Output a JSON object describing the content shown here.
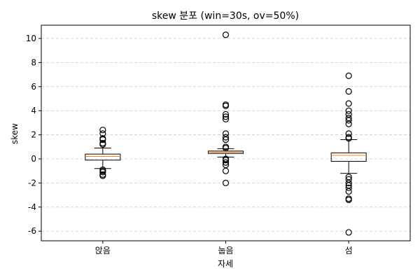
{
  "chart_data": {
    "type": "box",
    "title": "skew 분포 (win=30s, ov=50%)",
    "xlabel": "자세",
    "ylabel": "skew",
    "categories": [
      "앉음",
      "눕음",
      "섬"
    ],
    "ylim": [
      -6.8,
      11.1
    ],
    "yticks": [
      -6,
      -4,
      -2,
      0,
      2,
      4,
      6,
      8,
      10
    ],
    "grid": "y-dashed",
    "boxes": [
      {
        "category": "앉음",
        "q1": -0.1,
        "median": 0.2,
        "q3": 0.4,
        "whisker_low": -0.8,
        "whisker_high": 0.9,
        "outliers": [
          1.2,
          1.3,
          1.6,
          1.7,
          2.1,
          2.4,
          -0.9,
          -1.0,
          -1.1,
          -1.3,
          -1.4
        ]
      },
      {
        "category": "눕음",
        "q1": 0.45,
        "median": 0.55,
        "q3": 0.65,
        "whisker_low": 0.15,
        "whisker_high": 0.85,
        "outliers": [
          10.3,
          4.5,
          4.4,
          3.7,
          3.5,
          3.3,
          2.1,
          1.8,
          1.6,
          1.0,
          0.9,
          0.0,
          -0.1,
          -0.3,
          -0.5,
          -1.0,
          -2.0
        ]
      },
      {
        "category": "섬",
        "q1": -0.2,
        "median": 0.3,
        "q3": 0.5,
        "whisker_low": -1.2,
        "whisker_high": 1.6,
        "outliers": [
          6.9,
          5.6,
          4.6,
          4.0,
          3.7,
          3.4,
          3.2,
          2.9,
          2.1,
          1.8,
          1.7,
          -1.5,
          -1.7,
          -2.0,
          -2.2,
          -2.4,
          -2.7,
          -3.3,
          -3.4,
          -6.1
        ]
      }
    ],
    "colors": {
      "median": "#ff7f0e",
      "box": "#000000",
      "grid": "#cccccc"
    }
  }
}
